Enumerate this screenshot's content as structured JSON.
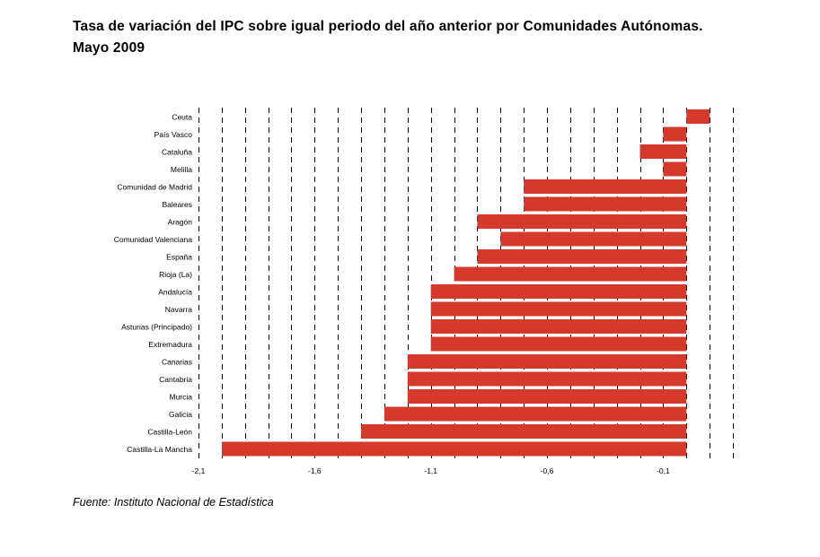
{
  "title_line1": "Tasa de variación del IPC sobre igual periodo del año anterior por Comunidades Autónomas.",
  "title_line2": "Mayo 2009",
  "source": "Fuente: Instituto Nacional de Estadística",
  "colors": {
    "bar": "#d83a2a",
    "gridline": "#000000"
  },
  "chart_data": {
    "type": "bar",
    "orientation": "horizontal",
    "categories": [
      "Ceuta",
      "País Vasco",
      "Cataluña",
      "Melilla",
      "Comunidad de Madrid",
      "Baleares",
      "Aragón",
      "Comunidad Valenciana",
      "España",
      "Rioja (La)",
      "Andalucía",
      "Navarra",
      "Asturias (Principado)",
      "Extremadura",
      "Canarias",
      "Cantabria",
      "Murcia",
      "Galicia",
      "Castilla-León",
      "Castilla-La Mancha"
    ],
    "values": [
      0.1,
      -0.1,
      -0.2,
      -0.1,
      -0.7,
      -0.7,
      -0.9,
      -0.8,
      -0.9,
      -1.0,
      -1.1,
      -1.1,
      -1.1,
      -1.1,
      -1.2,
      -1.2,
      -1.2,
      -1.3,
      -1.4,
      -2.0
    ],
    "baseline": 0,
    "xlim": [
      -2.1,
      0.2
    ],
    "xticks": [
      -2.1,
      -1.6,
      -1.1,
      -0.6,
      -0.1
    ],
    "xtick_labels": [
      "-2,1",
      "-1,6",
      "-1,1",
      "-0,6",
      "-0,1"
    ],
    "grid_step": 0.1,
    "grid": "vertical dashed every 0.1"
  }
}
